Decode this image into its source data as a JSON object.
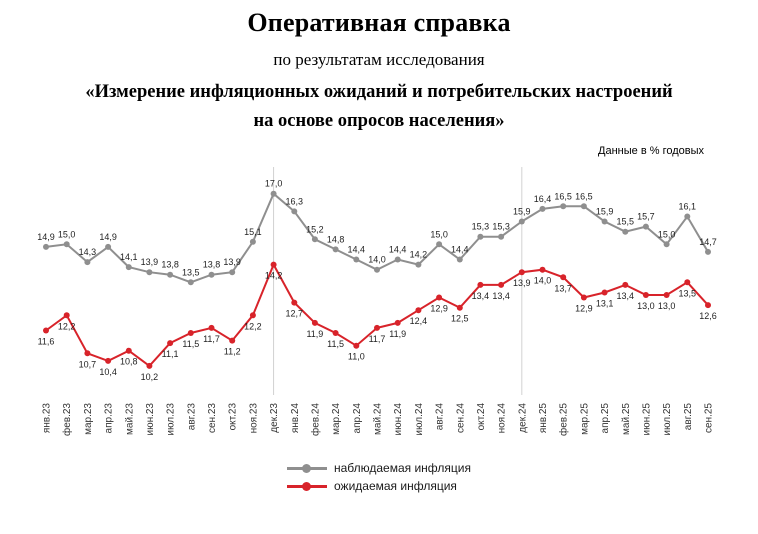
{
  "header": {
    "title": "Оперативная справка",
    "subtitle": "по результатам исследования",
    "quote_line1": "«Измерение инфляционных ожиданий и потребительских настроений",
    "quote_line2": "на основе опросов населения»",
    "units_note": "Данные в % годовых"
  },
  "chart_data": {
    "type": "line",
    "title": "",
    "xlabel": "",
    "ylabel": "",
    "grid": "off",
    "legend_position": "bottom",
    "ylim": [
      10.0,
      17.5
    ],
    "separators": [
      "дек.23",
      "дек.24"
    ],
    "categories": [
      "янв.23",
      "фев.23",
      "мар.23",
      "апр.23",
      "май.23",
      "июн.23",
      "июл.23",
      "авг.23",
      "сен.23",
      "окт.23",
      "ноя.23",
      "дек.23",
      "янв.24",
      "фев.24",
      "мар.24",
      "апр.24",
      "май.24",
      "июн.24",
      "июл.24",
      "авг.24",
      "сен.24",
      "окт.24",
      "ноя.24",
      "дек.24",
      "янв.25",
      "фев.25",
      "мар.25",
      "апр.25",
      "май.25",
      "июн.25",
      "июл.25",
      "авг.25",
      "сен.25"
    ],
    "series": [
      {
        "name": "наблюдаемая инфляция",
        "color": "#8f8f8f",
        "values": [
          14.9,
          15.0,
          14.3,
          14.9,
          14.1,
          13.9,
          13.8,
          13.5,
          13.8,
          13.9,
          15.1,
          17.0,
          16.3,
          15.2,
          14.8,
          14.4,
          14.0,
          14.4,
          14.2,
          15.0,
          14.4,
          15.3,
          15.3,
          15.9,
          16.4,
          16.5,
          16.5,
          15.9,
          15.5,
          15.7,
          15.0,
          16.1,
          14.7
        ]
      },
      {
        "name": "ожидаемая инфляция",
        "color": "#d8232a",
        "values": [
          11.6,
          12.2,
          10.7,
          10.4,
          10.8,
          10.2,
          11.1,
          11.5,
          11.7,
          11.2,
          12.2,
          14.2,
          12.7,
          11.9,
          11.5,
          11.0,
          11.7,
          11.9,
          12.4,
          12.9,
          12.5,
          13.4,
          13.4,
          13.9,
          14.0,
          13.7,
          12.9,
          13.1,
          13.4,
          13.0,
          13.0,
          13.5,
          12.6
        ]
      }
    ]
  }
}
